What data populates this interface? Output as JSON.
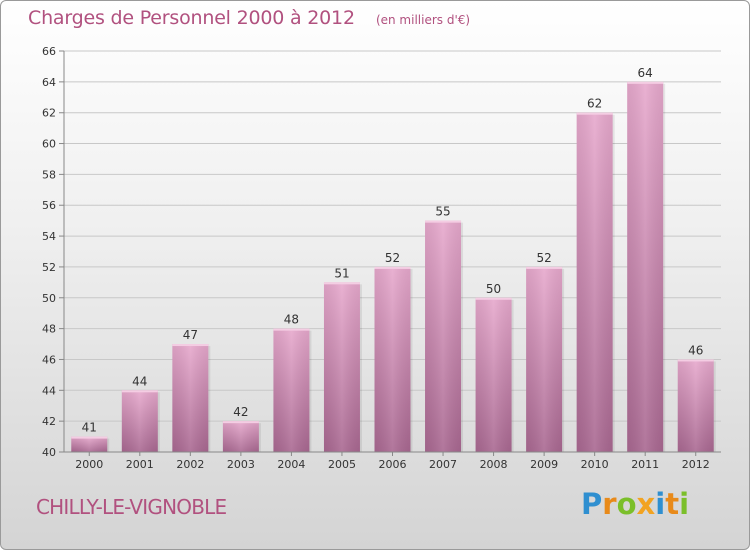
{
  "header": {
    "title": "Charges de Personnel 2000 à 2012",
    "subtitle": "(en milliers d'€)"
  },
  "footer": {
    "commune": "CHILLY-LE-VIGNOBLE"
  },
  "logo": {
    "text": "Proxiti",
    "letters": [
      {
        "ch": "P",
        "color": "#2f8fd0"
      },
      {
        "ch": "r",
        "color": "#e88a1a"
      },
      {
        "ch": "o",
        "color": "#7bbf2a"
      },
      {
        "ch": "x",
        "color": "#f2a321"
      },
      {
        "ch": "i",
        "color": "#2f8fd0"
      },
      {
        "ch": "t",
        "color": "#e88a1a"
      },
      {
        "ch": "i",
        "color": "#7bbf2a"
      }
    ]
  },
  "colors": {
    "bar_top": "#e7a9cd",
    "bar_bottom": "#a96891",
    "accent": "#b1517f"
  },
  "chart_data": {
    "type": "bar",
    "title": "Charges de Personnel 2000 à 2012",
    "subtitle": "(en milliers d'€)",
    "categories": [
      "2000",
      "2001",
      "2002",
      "2003",
      "2004",
      "2005",
      "2006",
      "2007",
      "2008",
      "2009",
      "2010",
      "2011",
      "2012"
    ],
    "values": [
      41,
      44,
      47,
      42,
      48,
      51,
      52,
      55,
      50,
      52,
      62,
      64,
      46
    ],
    "ylim": [
      40,
      66
    ],
    "yticks": [
      40,
      42,
      44,
      46,
      48,
      50,
      52,
      54,
      56,
      58,
      60,
      62,
      64,
      66
    ],
    "grid": true,
    "data_labels": true,
    "xlabel": "",
    "ylabel": ""
  }
}
